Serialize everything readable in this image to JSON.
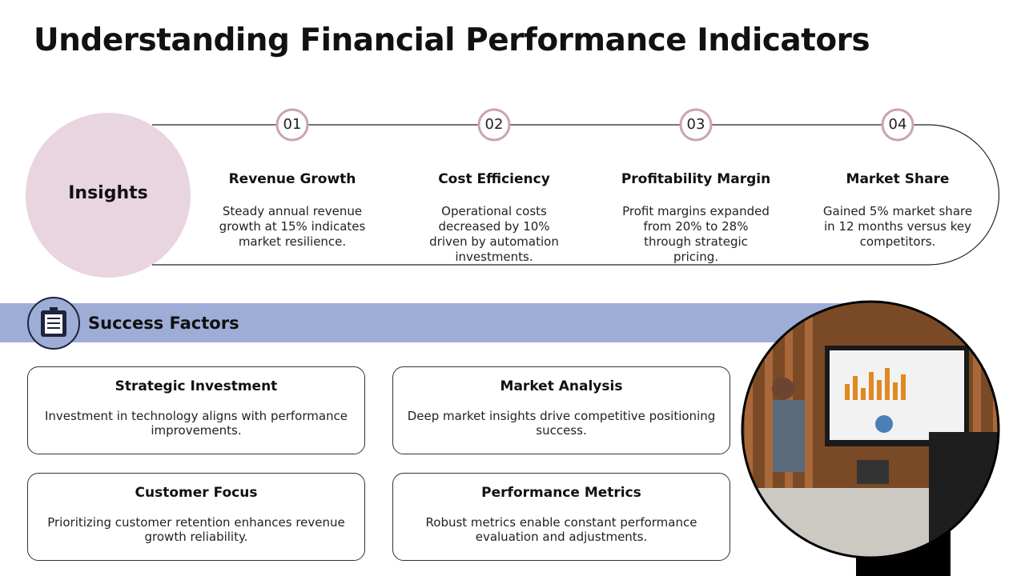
{
  "header": {
    "title": "Understanding Financial Performance Indicators"
  },
  "insights": {
    "label": "Insights",
    "steps": [
      {
        "number": "01",
        "title": "Revenue Growth",
        "text": "Steady annual revenue growth at 15% indicates market resilience."
      },
      {
        "number": "02",
        "title": "Cost Efficiency",
        "text": "Operational costs decreased by 10% driven by automation investments."
      },
      {
        "number": "03",
        "title": "Profitability Margin",
        "text": "Profit margins expanded from 20% to 28% through strategic pricing."
      },
      {
        "number": "04",
        "title": "Market Share",
        "text": "Gained 5% market share in 12 months versus key competitors."
      }
    ]
  },
  "success_factors": {
    "heading": "Success Factors",
    "cards": [
      {
        "title": "Strategic Investment",
        "text": "Investment in technology aligns with performance improvements."
      },
      {
        "title": "Market Analysis",
        "text": "Deep market insights drive competitive positioning success."
      },
      {
        "title": "Customer Focus",
        "text": "Prioritizing customer retention enhances revenue growth reliability."
      },
      {
        "title": "Performance Metrics",
        "text": "Robust metrics enable constant performance evaluation and adjustments."
      }
    ]
  }
}
